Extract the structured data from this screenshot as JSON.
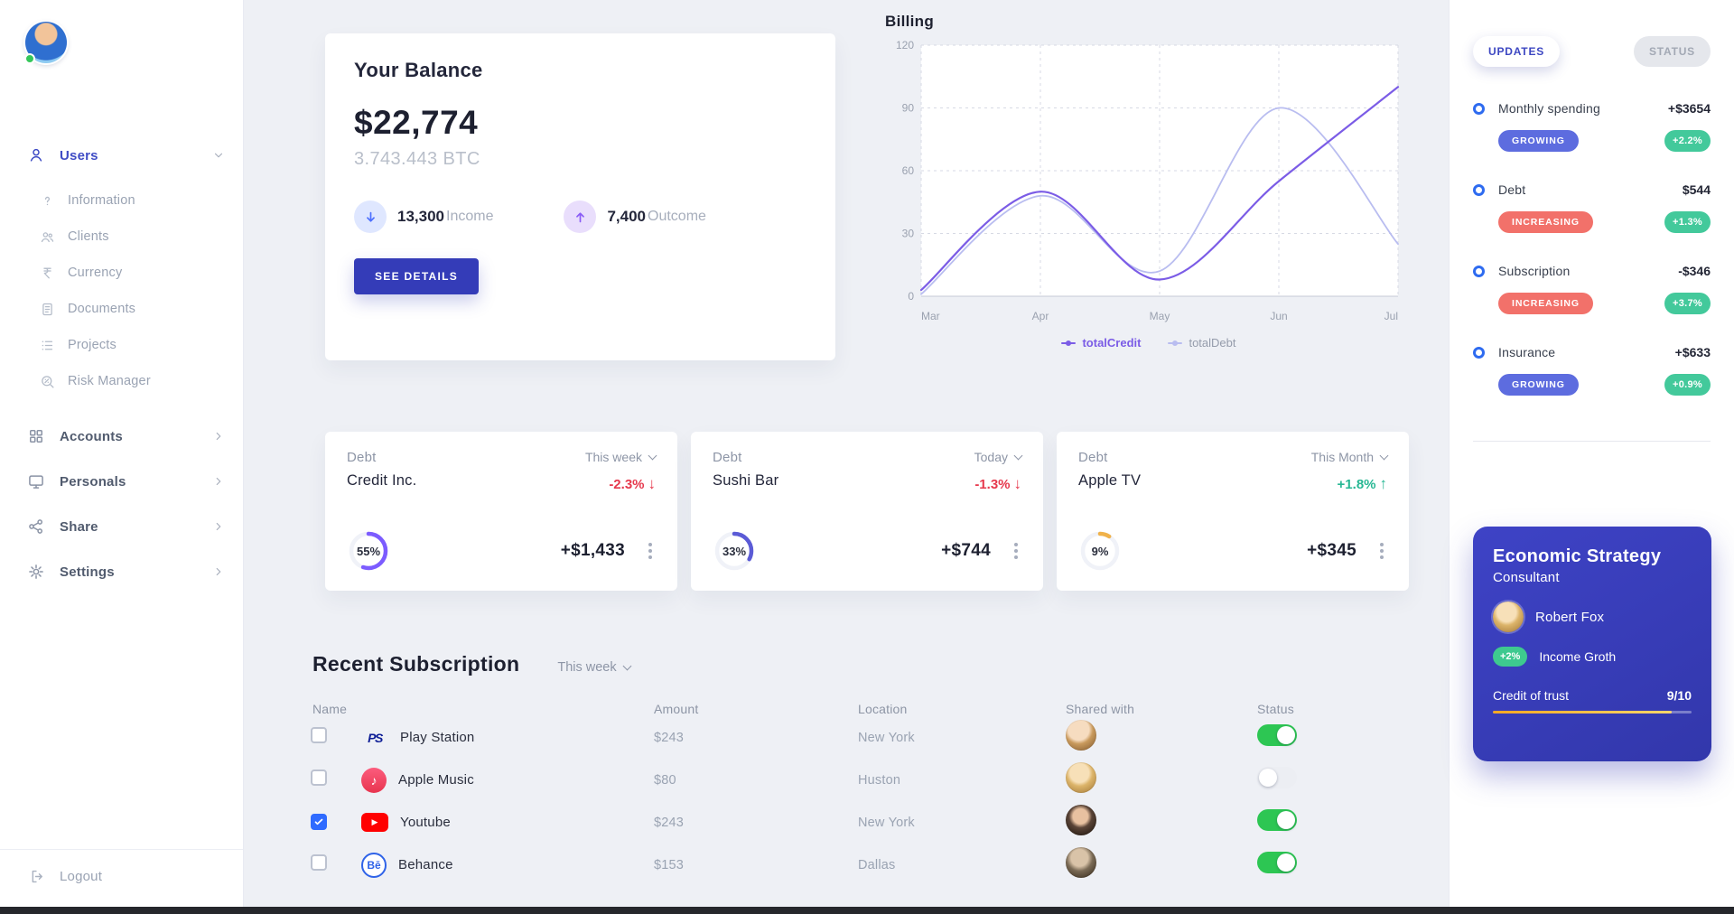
{
  "sidebar": {
    "users_label": "Users",
    "sub_items": [
      {
        "label": "Information"
      },
      {
        "label": "Clients"
      },
      {
        "label": "Currency"
      },
      {
        "label": "Documents"
      },
      {
        "label": "Projects"
      },
      {
        "label": "Risk Manager"
      }
    ],
    "groups": [
      {
        "label": "Accounts"
      },
      {
        "label": "Personals"
      },
      {
        "label": "Share"
      },
      {
        "label": "Settings"
      }
    ],
    "logout_label": "Logout"
  },
  "balance": {
    "title": "Your Balance",
    "amount": "$22,774",
    "btc": "3.743.443 BTC",
    "income_value": "13,300",
    "income_label": "Income",
    "outcome_value": "7,400",
    "outcome_label": "Outcome",
    "see_details": "SEE DETAILS"
  },
  "chart_data": {
    "type": "line",
    "title": "Billing",
    "x": [
      "Mar",
      "Apr",
      "May",
      "Jun",
      "Jul"
    ],
    "series": [
      {
        "name": "totalCredit",
        "color": "#7b5ce6",
        "values": [
          3,
          50,
          8,
          55,
          100
        ]
      },
      {
        "name": "totalDebt",
        "color": "#b9bdf0",
        "values": [
          1,
          48,
          12,
          90,
          25
        ]
      }
    ],
    "ylim": [
      0,
      120
    ],
    "yticks": [
      0,
      30,
      60,
      90,
      120
    ],
    "grid": "dashed",
    "legend_position": "bottom"
  },
  "stat_cards": [
    {
      "category": "Debt",
      "name": "Credit Inc.",
      "period": "This week",
      "change": "-2.3%",
      "arrow": "↓",
      "direction": "down",
      "percent": 55,
      "percent_label": "55%",
      "amount": "+$1,433",
      "ring_color": "#7c5cff"
    },
    {
      "category": "Debt",
      "name": "Sushi Bar",
      "period": "Today",
      "change": "-1.3%",
      "arrow": "↓",
      "direction": "down",
      "percent": 33,
      "percent_label": "33%",
      "amount": "+$744",
      "ring_color": "#5b5bd6"
    },
    {
      "category": "Debt",
      "name": "Apple TV",
      "period": "This Month",
      "change": "+1.8%",
      "arrow": "↑",
      "direction": "up",
      "percent": 9,
      "percent_label": "9%",
      "amount": "+$345",
      "ring_color": "#f0b24a"
    }
  ],
  "subscriptions": {
    "title": "Recent Subscription",
    "period": "This week",
    "columns": [
      "Name",
      "Amount",
      "Location",
      "Shared with",
      "Status"
    ],
    "rows": [
      {
        "name": "Play Station",
        "amount": "$243",
        "location": "New York",
        "checked": false,
        "status_on": true
      },
      {
        "name": "Apple Music",
        "amount": "$80",
        "location": "Huston",
        "checked": false,
        "status_on": false
      },
      {
        "name": "Youtube",
        "amount": "$243",
        "location": "New York",
        "checked": true,
        "status_on": true
      },
      {
        "name": "Behance",
        "amount": "$153",
        "location": "Dallas",
        "checked": false,
        "status_on": true
      }
    ]
  },
  "icons": {
    "playstation_glyph": "PS",
    "apple_music_glyph": "♪",
    "youtube_glyph": "▶",
    "behance_glyph": "Bē"
  },
  "updates_panel": {
    "tabs": [
      {
        "label": "UPDATES",
        "active": true
      },
      {
        "label": "STATUS",
        "active": false
      }
    ],
    "items": [
      {
        "label": "Monthly spending",
        "value": "+$3654",
        "trend": "GROWING",
        "trend_type": "growing",
        "percent": "+2.2%"
      },
      {
        "label": "Debt",
        "value": "$544",
        "trend": "INCREASING",
        "trend_type": "increasing",
        "percent": "+1.3%"
      },
      {
        "label": "Subscription",
        "value": "-$346",
        "trend": "INCREASING",
        "trend_type": "increasing",
        "percent": "+3.7%"
      },
      {
        "label": "Insurance",
        "value": "+$633",
        "trend": "GROWING",
        "trend_type": "growing",
        "percent": "+0.9%"
      }
    ]
  },
  "consultant_card": {
    "title": "Economic Strategy",
    "subtitle": "Consultant",
    "person": "Robert Fox",
    "badge": "+2%",
    "badge_label": "Income Groth",
    "trust_label": "Credit of trust",
    "trust_value": "9/10",
    "trust_percent": 90
  }
}
